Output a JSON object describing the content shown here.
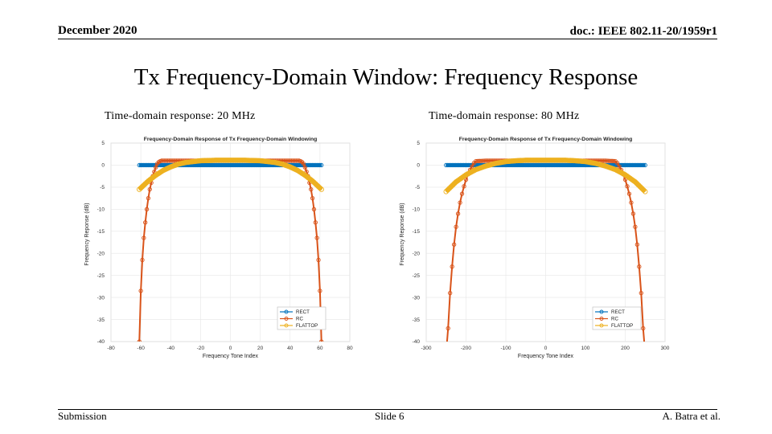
{
  "header": {
    "date": "December 2020",
    "doc": "doc.: IEEE 802.11-20/1959r1"
  },
  "title": "Tx Frequency-Domain Window: Frequency Response",
  "subtitles": [
    "Time-domain response: 20 MHz",
    "Time-domain response: 80 MHz"
  ],
  "footer": {
    "left": "Submission",
    "center": "Slide 6",
    "right": "A. Batra et al."
  },
  "colors": {
    "RECT": "#0072BD",
    "RC": "#D95319",
    "FLATTOP": "#EDB120"
  },
  "chart_data": [
    {
      "type": "line",
      "title": "Frequency-Domain Response of Tx Frequency-Domain Windowing",
      "xlabel": "Frequency Tone Index",
      "ylabel": "Frequency Reponse (dB)",
      "xlim": [
        -80,
        80
      ],
      "ylim": [
        -40,
        5
      ],
      "xticks": [
        -80,
        -60,
        -40,
        -20,
        0,
        20,
        40,
        60,
        80
      ],
      "yticks": [
        5,
        0,
        -5,
        -10,
        -15,
        -20,
        -25,
        -30,
        -35,
        -40
      ],
      "grid": true,
      "legend_position": "bottom-right",
      "series": [
        {
          "name": "RECT",
          "x": [
            -61,
            61
          ],
          "y": [
            0,
            0
          ]
        },
        {
          "name": "RC",
          "x": [
            -64,
            -61,
            -60,
            -59,
            -58,
            -57,
            -56,
            -55,
            -54,
            -53,
            -52,
            -51,
            -50,
            -49,
            -48,
            -47,
            -46,
            -45,
            -40,
            0,
            40,
            45,
            46,
            47,
            48,
            49,
            50,
            51,
            52,
            53,
            54,
            55,
            56,
            57,
            58,
            59,
            60,
            61,
            64
          ],
          "y": [
            -45,
            -40,
            -28.5,
            -21.5,
            -16.5,
            -13,
            -10,
            -7.5,
            -5.5,
            -4,
            -2.5,
            -1.5,
            -0.5,
            0.3,
            0.7,
            0.9,
            1,
            1,
            1,
            1,
            1,
            1,
            1,
            0.9,
            0.7,
            0.3,
            -0.5,
            -1.5,
            -2.5,
            -4,
            -5.5,
            -7.5,
            -10,
            -13,
            -16.5,
            -21.5,
            -28.5,
            -40,
            -45
          ]
        },
        {
          "name": "FLATTOP",
          "x": [
            -61,
            -55,
            -50,
            -45,
            -40,
            -35,
            -30,
            -25,
            -20,
            -10,
            0,
            10,
            20,
            25,
            30,
            35,
            40,
            45,
            50,
            55,
            61
          ],
          "y": [
            -5.5,
            -3.6,
            -2.3,
            -1.2,
            -0.4,
            0.2,
            0.6,
            0.8,
            1,
            1.1,
            1.1,
            1.1,
            1,
            0.8,
            0.6,
            0.2,
            -0.4,
            -1.2,
            -2.3,
            -3.6,
            -5.5
          ]
        }
      ]
    },
    {
      "type": "line",
      "title": "Frequency-Domain Response of Tx Frequency-Domain Windowing",
      "xlabel": "Frequency Tone Index",
      "ylabel": "Frequency Reponse (dB)",
      "xlim": [
        -300,
        300
      ],
      "ylim": [
        -40,
        5
      ],
      "xticks": [
        -300,
        -200,
        -100,
        0,
        100,
        200,
        300
      ],
      "yticks": [
        5,
        0,
        -5,
        -10,
        -15,
        -20,
        -25,
        -30,
        -35,
        -40
      ],
      "grid": true,
      "legend_position": "bottom-right",
      "series": [
        {
          "name": "RECT",
          "x": [
            -250,
            250
          ],
          "y": [
            0,
            0
          ]
        },
        {
          "name": "RC",
          "x": [
            -252,
            -245,
            -240,
            -235,
            -230,
            -225,
            -220,
            -215,
            -210,
            -205,
            -200,
            -195,
            -190,
            -185,
            -180,
            -175,
            -150,
            0,
            150,
            175,
            180,
            185,
            190,
            195,
            200,
            205,
            210,
            215,
            220,
            225,
            230,
            235,
            240,
            245,
            252
          ],
          "y": [
            -45,
            -37,
            -29,
            -23,
            -18,
            -14,
            -11,
            -8.5,
            -6.5,
            -4.8,
            -3.3,
            -2.1,
            -1.1,
            -0.3,
            0.5,
            0.9,
            1,
            1,
            1,
            0.9,
            0.5,
            -0.3,
            -1.1,
            -2.1,
            -3.3,
            -4.8,
            -6.5,
            -8.5,
            -11,
            -14,
            -18,
            -23,
            -29,
            -37,
            -45
          ]
        },
        {
          "name": "FLATTOP",
          "x": [
            -250,
            -225,
            -200,
            -175,
            -150,
            -125,
            -100,
            -75,
            -50,
            0,
            50,
            75,
            100,
            125,
            150,
            175,
            200,
            225,
            250
          ],
          "y": [
            -6,
            -3.8,
            -2.2,
            -1,
            -0.2,
            0.4,
            0.8,
            1,
            1.1,
            1.1,
            1.1,
            1,
            0.8,
            0.4,
            -0.2,
            -1,
            -2.2,
            -3.8,
            -6
          ]
        }
      ]
    }
  ]
}
